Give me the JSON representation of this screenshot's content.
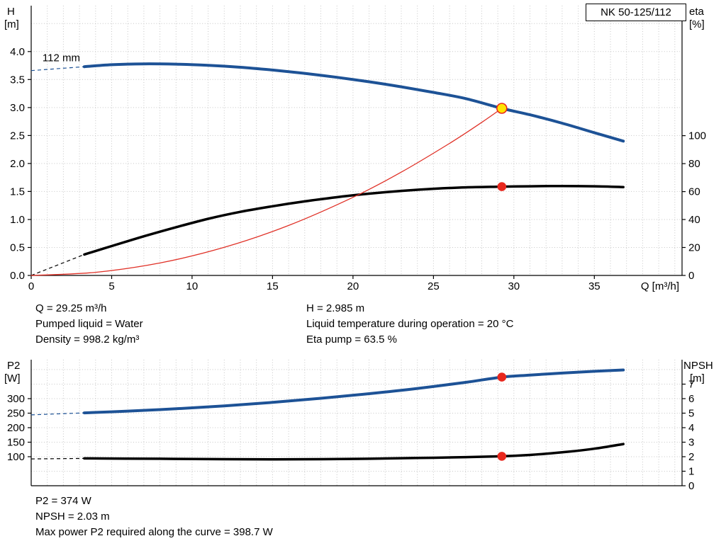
{
  "title_box": "NK 50-125/112",
  "info": {
    "left": [
      "Q = 29.25 m³/h",
      "Pumped liquid = Water",
      "Density = 998.2 kg/m³"
    ],
    "right": [
      "H = 2.985 m",
      "Liquid temperature during operation = 20 °C",
      "Eta pump = 63.5 %"
    ]
  },
  "footer": [
    "P2 = 374 W",
    "NPSH = 2.03 m",
    "Max power P2 required along the curve = 398.7 W"
  ],
  "colors": {
    "curve_blue": "#1d5296",
    "curve_black": "#000000",
    "system_red": "#e03127",
    "marker_red": "#e8281e",
    "duty_yellow": "#ffe400",
    "grid": "#c6c6c6",
    "axis": "#000000"
  },
  "chart_data": [
    {
      "id": "head-chart",
      "type": "line",
      "title": "NK 50-125/112",
      "grid_axis": "left",
      "grid_step": 0.5,
      "x_axis": {
        "label": "Q [m³/h]",
        "min": 0,
        "max": 40.45,
        "minor_step": 1,
        "major_ticks": [
          0,
          5,
          10,
          15,
          20,
          25,
          30,
          35
        ],
        "tick_labels": [
          "0",
          "5",
          "10",
          "15",
          "20",
          "25",
          "30",
          "35"
        ]
      },
      "y_left": {
        "label": "H",
        "unit": "[m]",
        "min": 0,
        "max": 4.82,
        "major_ticks": [
          0,
          0.5,
          1,
          1.5,
          2,
          2.5,
          3,
          3.5,
          4
        ],
        "tick_labels": [
          "0.0",
          "0.5",
          "1.0",
          "1.5",
          "2.0",
          "2.5",
          "3.0",
          "3.5",
          "4.0"
        ]
      },
      "y_right": {
        "label": "eta",
        "unit": "[%]",
        "min": 0,
        "max": 193,
        "major_ticks": [
          0,
          20,
          40,
          60,
          80,
          100
        ],
        "tick_labels": [
          "0",
          "20",
          "40",
          "60",
          "80",
          "100"
        ]
      },
      "annotations": [
        {
          "text": "112 mm",
          "x": 0.7,
          "y": 3.83
        }
      ],
      "series": [
        {
          "name": "head-curve-112mm",
          "axis": "left",
          "color_key": "curve_blue",
          "width": 4,
          "lead": [
            [
              0,
              3.66
            ],
            [
              3.3,
              3.73
            ]
          ],
          "points": [
            [
              3.3,
              3.73
            ],
            [
              5,
              3.765
            ],
            [
              7,
              3.78
            ],
            [
              9,
              3.775
            ],
            [
              11,
              3.755
            ],
            [
              13,
              3.72
            ],
            [
              15,
              3.67
            ],
            [
              17,
              3.61
            ],
            [
              19,
              3.54
            ],
            [
              21,
              3.46
            ],
            [
              23,
              3.37
            ],
            [
              25,
              3.27
            ],
            [
              27,
              3.16
            ],
            [
              29.25,
              2.985
            ],
            [
              31,
              2.87
            ],
            [
              33,
              2.72
            ],
            [
              35,
              2.55
            ],
            [
              36.8,
              2.4
            ]
          ]
        },
        {
          "name": "efficiency-curve",
          "axis": "right",
          "color_key": "curve_black",
          "width": 3.5,
          "lead": [
            [
              0,
              0
            ],
            [
              3.3,
              15
            ]
          ],
          "points": [
            [
              3.3,
              15
            ],
            [
              5,
              21
            ],
            [
              7,
              28
            ],
            [
              9,
              34.5
            ],
            [
              11,
              40.5
            ],
            [
              13,
              45.5
            ],
            [
              15,
              49.5
            ],
            [
              17,
              53
            ],
            [
              19,
              56
            ],
            [
              21,
              58.5
            ],
            [
              23,
              60.5
            ],
            [
              25,
              62
            ],
            [
              27,
              63
            ],
            [
              29.25,
              63.5
            ],
            [
              31,
              63.8
            ],
            [
              33,
              64
            ],
            [
              35,
              63.8
            ],
            [
              36.8,
              63.2
            ]
          ]
        },
        {
          "name": "system-curve",
          "axis": "left",
          "color_key": "system_red",
          "width": 1.3,
          "points": [
            [
              0,
              0
            ],
            [
              4,
              0.056
            ],
            [
              8,
              0.223
            ],
            [
              12,
              0.502
            ],
            [
              16,
              0.893
            ],
            [
              20,
              1.396
            ],
            [
              23,
              1.846
            ],
            [
              26,
              2.359
            ],
            [
              28,
              2.735
            ],
            [
              29.25,
              2.985
            ]
          ]
        }
      ],
      "markers": [
        {
          "name": "duty-point",
          "axis": "left",
          "x": 29.25,
          "y": 2.985,
          "r": 7,
          "fill_key": "duty_yellow",
          "stroke_key": "marker_red"
        },
        {
          "name": "efficiency-point",
          "axis": "right",
          "x": 29.25,
          "y": 63.5,
          "r": 5.5,
          "fill_key": "marker_red",
          "stroke_key": "marker_red"
        }
      ]
    },
    {
      "id": "power-npsh-chart",
      "type": "line",
      "grid_axis": "right",
      "grid_step": 1,
      "x_axis": {
        "label": "",
        "min": 0,
        "max": 40.45,
        "minor_step": 1,
        "major_ticks": [],
        "tick_labels": []
      },
      "y_left": {
        "label": "P2",
        "unit": "[W]",
        "min": 0,
        "max": 434,
        "major_ticks": [
          100,
          150,
          200,
          250,
          300
        ],
        "tick_labels": [
          "100",
          "150",
          "200",
          "250",
          "300"
        ]
      },
      "y_right": {
        "label": "NPSH",
        "unit": "[m]",
        "min": 0,
        "max": 8.68,
        "major_ticks": [
          0,
          1,
          2,
          3,
          4,
          5,
          6,
          7
        ],
        "tick_labels": [
          "0",
          "1",
          "2",
          "3",
          "4",
          "5",
          "6",
          "7"
        ]
      },
      "annotations": [],
      "series": [
        {
          "name": "p2-curve",
          "axis": "left",
          "color_key": "curve_blue",
          "width": 4,
          "lead": [
            [
              0,
              244
            ],
            [
              3.3,
              251
            ]
          ],
          "points": [
            [
              3.3,
              251
            ],
            [
              6,
              257
            ],
            [
              9,
              265
            ],
            [
              12,
              275
            ],
            [
              15,
              287
            ],
            [
              18,
              301
            ],
            [
              21,
              317
            ],
            [
              24,
              335
            ],
            [
              27,
              356
            ],
            [
              29.25,
              374
            ],
            [
              31,
              381
            ],
            [
              33,
              388
            ],
            [
              35,
              394
            ],
            [
              36.8,
              398.7
            ]
          ]
        },
        {
          "name": "npsh-curve",
          "axis": "right",
          "color_key": "curve_black",
          "width": 3.5,
          "lead": [
            [
              0,
              1.85
            ],
            [
              3.3,
              1.88
            ]
          ],
          "points": [
            [
              3.3,
              1.88
            ],
            [
              6,
              1.87
            ],
            [
              9,
              1.85
            ],
            [
              12,
              1.83
            ],
            [
              15,
              1.82
            ],
            [
              18,
              1.83
            ],
            [
              21,
              1.86
            ],
            [
              24,
              1.91
            ],
            [
              27,
              1.97
            ],
            [
              29.25,
              2.03
            ],
            [
              31,
              2.12
            ],
            [
              33,
              2.3
            ],
            [
              35,
              2.55
            ],
            [
              36.8,
              2.87
            ]
          ]
        }
      ],
      "markers": [
        {
          "name": "p2-point",
          "axis": "left",
          "x": 29.25,
          "y": 374,
          "r": 5.5,
          "fill_key": "marker_red",
          "stroke_key": "marker_red"
        },
        {
          "name": "npsh-point",
          "axis": "right",
          "x": 29.25,
          "y": 2.03,
          "r": 5.5,
          "fill_key": "marker_red",
          "stroke_key": "marker_red"
        }
      ]
    }
  ]
}
